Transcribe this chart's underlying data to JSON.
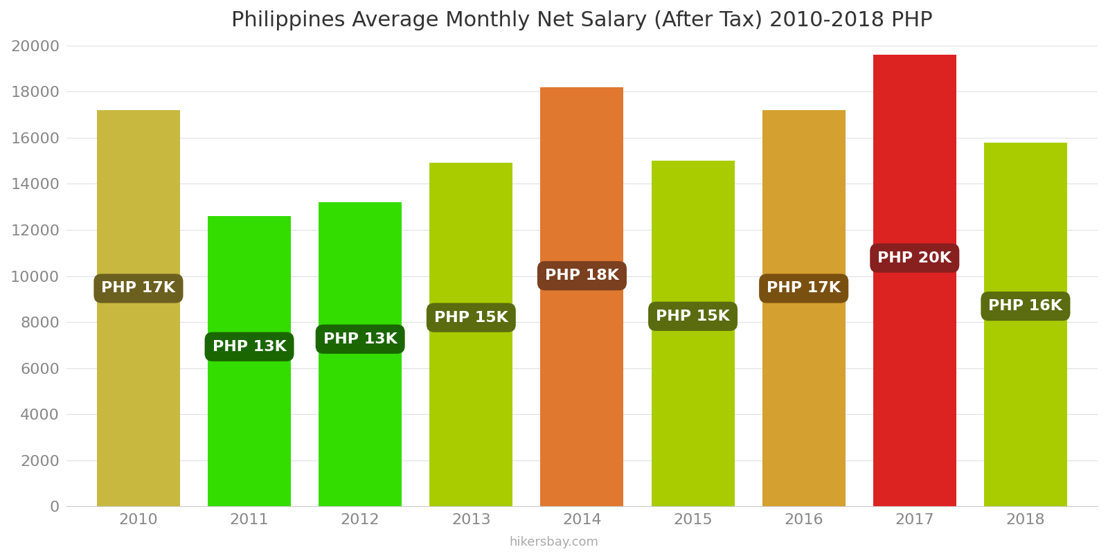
{
  "years": [
    2010,
    2011,
    2012,
    2013,
    2014,
    2015,
    2016,
    2017,
    2018
  ],
  "values": [
    17200,
    12600,
    13200,
    14900,
    18200,
    15000,
    17200,
    19600,
    15800
  ],
  "labels": [
    "PHP 17K",
    "PHP 13K",
    "PHP 13K",
    "PHP 15K",
    "PHP 18K",
    "PHP 15K",
    "PHP 17K",
    "PHP 20K",
    "PHP 16K"
  ],
  "bar_colors": [
    "#c8b840",
    "#33dd00",
    "#33dd00",
    "#a8cc00",
    "#e07830",
    "#a8cc00",
    "#d4a030",
    "#dd2222",
    "#a8cc00"
  ],
  "label_bg_colors": [
    "#6b6020",
    "#1a6600",
    "#1a6600",
    "#5a6b10",
    "#7a4020",
    "#5a6b10",
    "#7a5010",
    "#882020",
    "#5a6b10"
  ],
  "title": "Philippines Average Monthly Net Salary (After Tax) 2010-2018 PHP",
  "ylim": [
    0,
    20000
  ],
  "yticks": [
    0,
    2000,
    4000,
    6000,
    8000,
    10000,
    12000,
    14000,
    16000,
    18000,
    20000
  ],
  "background_color": "#ffffff",
  "label_text_color": "#ffffff",
  "footer_text": "hikersbay.com",
  "title_fontsize": 22,
  "label_fontsize": 16,
  "bar_width": 0.75
}
